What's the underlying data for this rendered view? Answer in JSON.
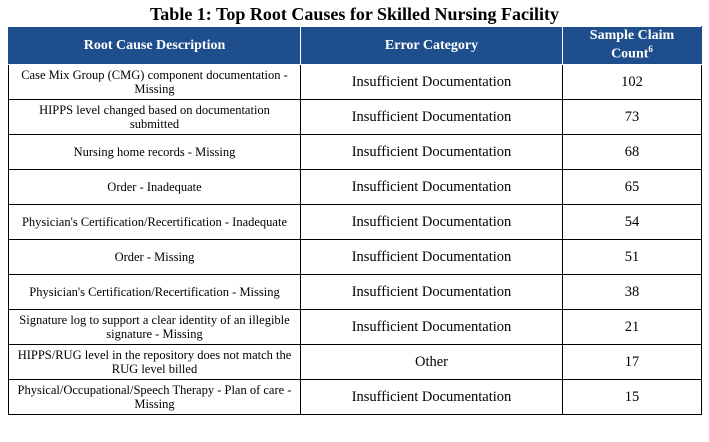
{
  "table_title": "Table 1: Top Root Causes for Skilled Nursing Facility",
  "headers": {
    "cause": "Root Cause Description",
    "category": "Error Category",
    "count_line1": "Sample Claim",
    "count_line2": "Count",
    "count_footnote": "6"
  },
  "rows": [
    {
      "cause": "Case Mix Group (CMG) component documentation - Missing",
      "category": "Insufficient Documentation",
      "count": "102"
    },
    {
      "cause": "HIPPS level changed based on documentation submitted",
      "category": "Insufficient Documentation",
      "count": "73"
    },
    {
      "cause": "Nursing home records - Missing",
      "category": "Insufficient Documentation",
      "count": "68"
    },
    {
      "cause": "Order - Inadequate",
      "category": "Insufficient Documentation",
      "count": "65"
    },
    {
      "cause": "Physician's Certification/Recertification - Inadequate",
      "category": "Insufficient Documentation",
      "count": "54"
    },
    {
      "cause": "Order - Missing",
      "category": "Insufficient Documentation",
      "count": "51"
    },
    {
      "cause": "Physician's Certification/Recertification - Missing",
      "category": "Insufficient Documentation",
      "count": "38"
    },
    {
      "cause": "Signature log to support a clear identity of an illegible signature - Missing",
      "category": "Insufficient Documentation",
      "count": "21"
    },
    {
      "cause": "HIPPS/RUG level in the repository does not match the RUG level billed",
      "category": "Other",
      "count": "17"
    },
    {
      "cause": "Physical/Occupational/Speech Therapy - Plan of care - Missing",
      "category": "Insufficient Documentation",
      "count": "15"
    }
  ],
  "colors": {
    "header_bg": "#1f4e8c",
    "header_text": "#ffffff",
    "border": "#000000"
  }
}
